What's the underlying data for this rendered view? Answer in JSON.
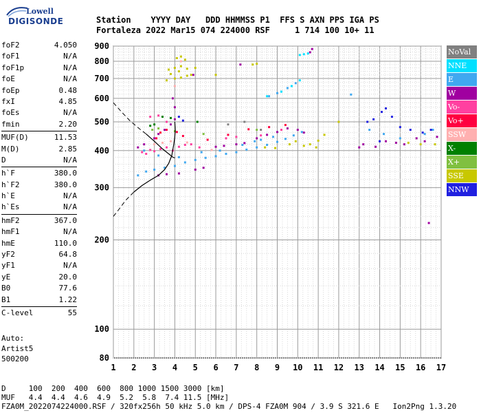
{
  "logo": {
    "line1": "Lowell",
    "line2": "DIGISONDE"
  },
  "header": {
    "line1": "Station    YYYY DAY   DDD HHMMSS P1  FFS S AXN PPS IGA PS",
    "line2": "Fortaleza 2022 Mar15 074 224000 RSF     1 714 100 10+ 11"
  },
  "params": {
    "group1": [
      {
        "label": "foF2",
        "value": "4.050"
      },
      {
        "label": "foF1",
        "value": "N/A"
      },
      {
        "label": "foF1p",
        "value": "N/A"
      },
      {
        "label": "foE",
        "value": "N/A"
      },
      {
        "label": "foEp",
        "value": "0.48"
      },
      {
        "label": "fxI",
        "value": "4.85"
      },
      {
        "label": "foEs",
        "value": "N/A"
      },
      {
        "label": "fmin",
        "value": "2.20"
      }
    ],
    "group2": [
      {
        "label": "MUF(D)",
        "value": "11.53"
      },
      {
        "label": "M(D)",
        "value": "2.85"
      },
      {
        "label": "D",
        "value": "N/A"
      }
    ],
    "group3": [
      {
        "label": "h`F",
        "value": "380.0"
      },
      {
        "label": "h`F2",
        "value": "380.0"
      },
      {
        "label": "h`E",
        "value": "N/A"
      },
      {
        "label": "h`Es",
        "value": "N/A"
      }
    ],
    "group4": [
      {
        "label": "hmF2",
        "value": "367.0"
      },
      {
        "label": "hmF1",
        "value": "N/A"
      },
      {
        "label": "hmE",
        "value": "110.0"
      },
      {
        "label": "yF2",
        "value": "64.8"
      },
      {
        "label": "yF1",
        "value": "N/A"
      },
      {
        "label": "yE",
        "value": "20.0"
      },
      {
        "label": "B0",
        "value": "77.6"
      },
      {
        "label": "B1",
        "value": "1.22"
      }
    ],
    "group5": [
      {
        "label": "C-level",
        "value": "55"
      }
    ]
  },
  "auto": {
    "line1": "Auto:",
    "line2": "Artist5",
    "line3": "500200"
  },
  "footer": {
    "line1": "D     100  200  400  600  800 1000 1500 3000 [km]",
    "line2": "MUF   4.4  4.4  4.6  4.9  5.2  5.8  7.4 11.5 [MHz]",
    "line3": "FZA0M_2022074224000.RSF / 320fx256h 50 kHz 5.0 km / DPS-4 FZA0M 904 / 3.9 S 321.6 E   Ion2Png 1.3.20"
  },
  "legend": [
    {
      "label": "NoVal",
      "color": "#808080"
    },
    {
      "label": "NNE",
      "color": "#00e0ff"
    },
    {
      "label": "E",
      "color": "#40a8f0"
    },
    {
      "label": "W",
      "color": "#a000a0"
    },
    {
      "label": "Vo-",
      "color": "#ff40a0"
    },
    {
      "label": "Vo+",
      "color": "#ff0040"
    },
    {
      "label": "SSW",
      "color": "#ffb0b0"
    },
    {
      "label": "X-",
      "color": "#008000"
    },
    {
      "label": "X+",
      "color": "#80c040"
    },
    {
      "label": "SSE",
      "color": "#c8c800"
    },
    {
      "label": "NNW",
      "color": "#2020e0"
    }
  ],
  "chart_data": {
    "type": "scatter",
    "x_unit": "MHz",
    "y_unit": "km",
    "xlim": [
      1,
      17
    ],
    "ylim": [
      80,
      900
    ],
    "y_scale": "log",
    "x_ticks": [
      "1",
      "2",
      "3",
      "4",
      "5",
      "6",
      "7",
      "8",
      "9",
      "10",
      "11",
      "12",
      "13",
      "14",
      "15",
      "16",
      "17"
    ],
    "y_ticks": [
      "80",
      "100",
      "200",
      "300",
      "400",
      "500",
      "600",
      "700",
      "800",
      "900"
    ],
    "grid": true,
    "legend_position": "right",
    "series": [
      {
        "name": "E",
        "points": [
          [
            2.2,
            330
          ],
          [
            2.6,
            340
          ],
          [
            3.0,
            345
          ],
          [
            3.5,
            350
          ],
          [
            4.0,
            355
          ],
          [
            4.5,
            365
          ],
          [
            5.0,
            372
          ],
          [
            5.5,
            378
          ],
          [
            6.0,
            383
          ],
          [
            6.5,
            390
          ],
          [
            7.0,
            395
          ],
          [
            7.5,
            403
          ],
          [
            8.0,
            410
          ],
          [
            8.5,
            418
          ],
          [
            9.0,
            428
          ],
          [
            9.4,
            438
          ],
          [
            9.8,
            450
          ],
          [
            10.2,
            462
          ],
          [
            2.5,
            400
          ],
          [
            3.2,
            385
          ],
          [
            4.2,
            380
          ],
          [
            5.3,
            395
          ],
          [
            6.2,
            400
          ],
          [
            7.3,
            418
          ],
          [
            8.2,
            435
          ],
          [
            13.5,
            470
          ],
          [
            14.2,
            455
          ],
          [
            15.0,
            440
          ],
          [
            16.2,
            455
          ],
          [
            16.6,
            470
          ],
          [
            8.6,
            610
          ],
          [
            9.0,
            625
          ],
          [
            9.5,
            650
          ],
          [
            9.9,
            675
          ],
          [
            12.6,
            618
          ],
          [
            7.9,
            430
          ],
          [
            8.8,
            445
          ]
        ]
      },
      {
        "name": "W",
        "points": [
          [
            2.2,
            410
          ],
          [
            2.5,
            420
          ],
          [
            3.0,
            440
          ],
          [
            3.2,
            455
          ],
          [
            3.5,
            470
          ],
          [
            3.8,
            490
          ],
          [
            4.0,
            510
          ],
          [
            3.2,
            330
          ],
          [
            3.6,
            333
          ],
          [
            4.2,
            335
          ],
          [
            5.0,
            345
          ],
          [
            5.4,
            350
          ],
          [
            6.0,
            412
          ],
          [
            6.4,
            415
          ],
          [
            7.0,
            420
          ],
          [
            7.4,
            424
          ],
          [
            8.0,
            440
          ],
          [
            8.5,
            452
          ],
          [
            9.0,
            462
          ],
          [
            9.5,
            475
          ],
          [
            10.0,
            470
          ],
          [
            10.3,
            460
          ],
          [
            10.6,
            858
          ],
          [
            10.7,
            880
          ],
          [
            13.0,
            410
          ],
          [
            13.2,
            420
          ],
          [
            13.8,
            412
          ],
          [
            14.3,
            430
          ],
          [
            14.8,
            425
          ],
          [
            15.2,
            420
          ],
          [
            15.8,
            440
          ],
          [
            16.2,
            430
          ],
          [
            16.8,
            445
          ],
          [
            16.4,
            228
          ],
          [
            4.9,
            720
          ],
          [
            3.9,
            600
          ],
          [
            4.0,
            560
          ],
          [
            7.2,
            780
          ]
        ]
      },
      {
        "name": "Vo-",
        "points": [
          [
            2.4,
            395
          ],
          [
            2.6,
            390
          ],
          [
            2.8,
            402
          ],
          [
            3.0,
            398
          ],
          [
            3.3,
            405
          ],
          [
            3.6,
            410
          ],
          [
            3.9,
            400
          ],
          [
            4.2,
            412
          ],
          [
            4.5,
            418
          ],
          [
            4.8,
            420
          ],
          [
            5.2,
            410
          ],
          [
            2.8,
            520
          ],
          [
            3.2,
            525
          ],
          [
            3.6,
            500
          ],
          [
            6.5,
            440
          ],
          [
            7.0,
            445
          ],
          [
            8.2,
            450
          ],
          [
            9.2,
            470
          ]
        ]
      },
      {
        "name": "Vo+",
        "points": [
          [
            3.1,
            440
          ],
          [
            3.3,
            460
          ],
          [
            3.6,
            470
          ],
          [
            4.1,
            462
          ],
          [
            4.4,
            448
          ],
          [
            5.6,
            435
          ],
          [
            6.6,
            452
          ],
          [
            7.6,
            472
          ],
          [
            8.6,
            480
          ],
          [
            9.4,
            488
          ]
        ]
      },
      {
        "name": "SSW",
        "points": [
          [
            3.0,
            420
          ],
          [
            3.4,
            425
          ],
          [
            3.8,
            430
          ],
          [
            4.6,
            426
          ],
          [
            5.8,
            402
          ],
          [
            4.3,
            800
          ],
          [
            4.0,
            660
          ]
        ]
      },
      {
        "name": "X-",
        "points": [
          [
            2.8,
            485
          ],
          [
            3.0,
            490
          ],
          [
            3.4,
            520
          ],
          [
            3.8,
            515
          ],
          [
            5.1,
            500
          ]
        ]
      },
      {
        "name": "X+",
        "points": [
          [
            2.9,
            470
          ],
          [
            3.2,
            475
          ],
          [
            4.0,
            465
          ],
          [
            5.4,
            455
          ],
          [
            8.0,
            470
          ]
        ]
      },
      {
        "name": "SSE",
        "points": [
          [
            3.6,
            690
          ],
          [
            4.0,
            700
          ],
          [
            4.3,
            705
          ],
          [
            4.6,
            715
          ],
          [
            4.8,
            720
          ],
          [
            3.7,
            750
          ],
          [
            4.0,
            760
          ],
          [
            4.3,
            770
          ],
          [
            3.8,
            725
          ],
          [
            4.2,
            740
          ],
          [
            4.6,
            755
          ],
          [
            7.8,
            780
          ],
          [
            8.0,
            785
          ],
          [
            6.0,
            720
          ],
          [
            9.6,
            420
          ],
          [
            9.9,
            430
          ],
          [
            10.3,
            415
          ],
          [
            10.6,
            420
          ],
          [
            10.9,
            410
          ],
          [
            11.0,
            432
          ],
          [
            11.3,
            452
          ],
          [
            12.0,
            500
          ],
          [
            15.4,
            425
          ],
          [
            16.0,
            420
          ],
          [
            16.7,
            420
          ],
          [
            8.4,
            410
          ],
          [
            8.9,
            408
          ],
          [
            4.1,
            820
          ],
          [
            4.3,
            830
          ],
          [
            4.5,
            810
          ],
          [
            5.0,
            760
          ]
        ]
      },
      {
        "name": "NNE",
        "points": [
          [
            10.1,
            840
          ],
          [
            10.3,
            845
          ],
          [
            10.5,
            850
          ],
          [
            8.5,
            610
          ],
          [
            9.2,
            632
          ],
          [
            9.7,
            660
          ],
          [
            10.1,
            690
          ]
        ]
      },
      {
        "name": "NNW",
        "points": [
          [
            13.4,
            500
          ],
          [
            13.7,
            510
          ],
          [
            14.1,
            540
          ],
          [
            14.3,
            555
          ],
          [
            14.6,
            520
          ],
          [
            15.0,
            480
          ],
          [
            15.5,
            470
          ],
          [
            16.1,
            460
          ],
          [
            16.5,
            470
          ],
          [
            14.0,
            430
          ],
          [
            4.2,
            520
          ],
          [
            4.4,
            505
          ]
        ]
      },
      {
        "name": "NoVal",
        "points": [
          [
            6.6,
            490
          ],
          [
            7.4,
            500
          ],
          [
            8.2,
            470
          ]
        ]
      }
    ],
    "trace_curve": [
      [
        1.0,
        240
      ],
      [
        1.3,
        255
      ],
      [
        1.6,
        272
      ],
      [
        2.0,
        290
      ],
      [
        2.4,
        305
      ],
      [
        2.8,
        318
      ],
      [
        3.2,
        330
      ],
      [
        3.5,
        345
      ],
      [
        3.7,
        362
      ],
      [
        3.85,
        385
      ],
      [
        3.95,
        420
      ],
      [
        4.0,
        445
      ],
      [
        4.02,
        470
      ],
      [
        4.0,
        500
      ]
    ],
    "profile_curve": [
      [
        1.0,
        580
      ],
      [
        1.4,
        540
      ],
      [
        1.8,
        505
      ],
      [
        2.2,
        478
      ],
      [
        2.6,
        455
      ],
      [
        3.0,
        430
      ],
      [
        3.4,
        405
      ],
      [
        3.7,
        390
      ],
      [
        3.9,
        380
      ],
      [
        4.0,
        378
      ]
    ]
  }
}
